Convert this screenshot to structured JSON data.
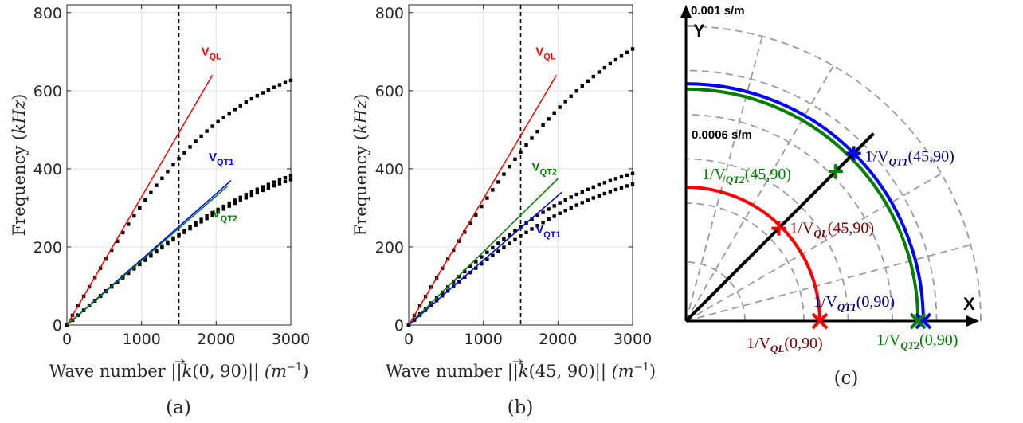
{
  "chart_data": [
    {
      "type": "scatter",
      "panel_label": "(a)",
      "xlabel": "Wave number ||k(0,90)|| (m^-1)",
      "xlabel_parts": {
        "pre": "Wave number ||",
        "vec": "k",
        "arg": "(0, 90)||",
        "unit_open": "(m",
        "unit_exp": "−1",
        "unit_close": ")"
      },
      "ylabel": "Frequency (kHz)",
      "xlim": [
        0,
        3000
      ],
      "ylim": [
        0,
        820
      ],
      "xticks": [
        0,
        1000,
        2000,
        3000
      ],
      "yticks": [
        0,
        200,
        400,
        600,
        800
      ],
      "grid": true,
      "vline_x": 1500,
      "series": [
        {
          "name": "V_QL",
          "label_main": "V",
          "label_sub": "QL",
          "color": "#ff0000",
          "line": [
            [
              0,
              0
            ],
            [
              1950,
              640
            ]
          ],
          "label_at": [
            1800,
            690
          ]
        },
        {
          "name": "V_QT1",
          "label_main": "V",
          "label_sub": "QT1",
          "color": "#0000ff",
          "line": [
            [
              0,
              0
            ],
            [
              2200,
              370
            ]
          ],
          "label_at": [
            1900,
            420
          ]
        },
        {
          "name": "V_QT2",
          "label_main": "V",
          "label_sub": "QT2",
          "color": "#008000",
          "line": [
            [
              0,
              0
            ],
            [
              2150,
              355
            ]
          ],
          "label_at": [
            1950,
            275
          ]
        }
      ],
      "dispersion": [
        {
          "slope": 0.328,
          "amp": 710,
          "curve": 0.00121
        },
        {
          "slope": 0.168,
          "amp": 500,
          "curve": 0.00055
        },
        {
          "slope": 0.165,
          "amp": 482,
          "curve": 0.00056
        }
      ]
    },
    {
      "type": "scatter",
      "panel_label": "(b)",
      "xlabel": "Wave number ||k(45,90)|| (m^-1)",
      "xlabel_parts": {
        "pre": "Wave number ||",
        "vec": "k",
        "arg": "(45, 90)||",
        "unit_open": "(m",
        "unit_exp": "−1",
        "unit_close": ")"
      },
      "ylabel": "Frequency (kHz)",
      "xlim": [
        0,
        3000
      ],
      "ylim": [
        0,
        820
      ],
      "xticks": [
        0,
        1000,
        2000,
        3000
      ],
      "yticks": [
        0,
        200,
        400,
        600,
        800
      ],
      "grid": true,
      "vline_x": 1500,
      "series": [
        {
          "name": "V_QL",
          "label_main": "V",
          "label_sub": "QL",
          "color": "#ff0000",
          "line": [
            [
              0,
              0
            ],
            [
              1980,
              640
            ]
          ],
          "label_at": [
            1700,
            690
          ]
        },
        {
          "name": "V_QT2",
          "label_main": "V",
          "label_sub": "QT2",
          "color": "#008000",
          "line": [
            [
              0,
              0
            ],
            [
              2000,
              375
            ]
          ],
          "label_at": [
            1650,
            395
          ]
        },
        {
          "name": "V_QT1",
          "label_main": "V",
          "label_sub": "QT1",
          "color": "#0000ff",
          "line": [
            [
              0,
              0
            ],
            [
              2050,
              340
            ]
          ],
          "label_at": [
            1700,
            235
          ]
        }
      ],
      "dispersion": [
        {
          "slope": 0.325,
          "amp": 880,
          "curve": 0.00088
        },
        {
          "slope": 0.188,
          "amp": 462,
          "curve": 0.00075
        },
        {
          "slope": 0.168,
          "amp": 443,
          "curve": 0.00064
        }
      ]
    },
    {
      "type": "polar",
      "panel_label": "(c)",
      "r_max_label": "0.001 s/m",
      "r_mid_label": "0.0006 s/m",
      "r_max": 0.001,
      "r_mid": 0.0006,
      "dashed_rings": [
        0.0002,
        0.0004,
        0.00055,
        0.0007,
        0.00085,
        0.001
      ],
      "dashed_angles_deg": [
        15,
        30,
        45,
        60,
        75
      ],
      "x_axis_label": "X",
      "y_axis_label": "Y",
      "slowness_curves": [
        {
          "name": "1/V_QL",
          "color": "#ff0000",
          "r": 0.000454
        },
        {
          "name": "1/V_QT2",
          "color": "#008000",
          "r": 0.000787
        },
        {
          "name": "1/V_QT1",
          "color": "#0000ff",
          "r": 0.000805
        }
      ],
      "points": [
        {
          "label": "1/V_QT1(45,90)",
          "main": "1/V",
          "sub": "QT1",
          "args": "(45,90)",
          "color": "#0000ff",
          "text_color": "#00007f",
          "angle_deg": 45,
          "r": 0.000805
        },
        {
          "label": "1/V_QT2(45,90)",
          "main": "1/V",
          "sub": "QT2",
          "args": "(45,90)",
          "color": "#008000",
          "text_color": "#008000",
          "angle_deg": 45,
          "r": 0.000718
        },
        {
          "label": "1/V_QL(45,90)",
          "main": "1/V",
          "sub": "QL",
          "args": "(45,90)",
          "color": "#ff0000",
          "text_color": "#7f0000",
          "angle_deg": 45,
          "r": 0.000445
        },
        {
          "label": "1/V_QT1(0,90)",
          "main": "1/V",
          "sub": "QT1",
          "args": "(0,90)",
          "color": "#0000ff",
          "text_color": "#00007f",
          "angle_deg": 0,
          "r": 0.000805
        },
        {
          "label": "1/V_QT2(0,90)",
          "main": "1/V",
          "sub": "QT2",
          "args": "(0,90)",
          "color": "#008000",
          "text_color": "#008000",
          "angle_deg": 0,
          "r": 0.000787
        },
        {
          "label": "1/V_QL(0,90)",
          "main": "1/V",
          "sub": "QL",
          "args": "(0,90)",
          "color": "#ff0000",
          "text_color": "#7f0000",
          "angle_deg": 0,
          "r": 0.000454
        }
      ]
    }
  ]
}
